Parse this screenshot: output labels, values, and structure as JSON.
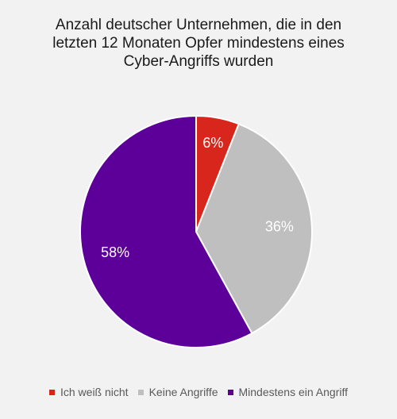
{
  "chart_data": {
    "type": "pie",
    "title_lines": [
      "Anzahl deutscher Unternehmen, die in den",
      "letzten 12 Monaten Opfer mindestens eines",
      "Cyber-Angriffs wurden"
    ],
    "slices": [
      {
        "label": "Ich weiß nicht",
        "value": 6,
        "display": "6%",
        "color": "#d9261c"
      },
      {
        "label": "Keine Angriffe",
        "value": 36,
        "display": "36%",
        "color": "#bfbfbf"
      },
      {
        "label": "Mindestens ein Angriff",
        "value": 58,
        "display": "58%",
        "color": "#5c0099"
      }
    ],
    "legend_position": "bottom"
  }
}
